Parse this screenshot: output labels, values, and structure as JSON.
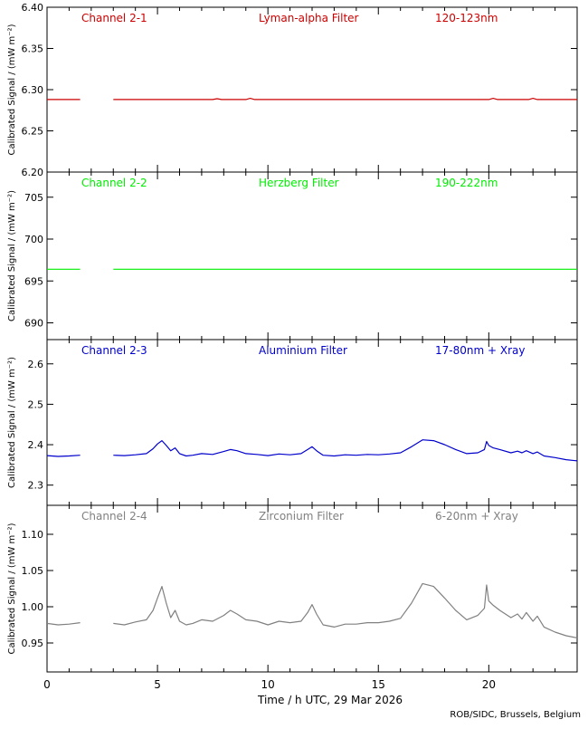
{
  "chart_data": [
    {
      "type": "line",
      "panel_name": "channel-2-1",
      "label_channel": "Channel 2-1",
      "label_filter": "Lyman-alpha Filter",
      "label_band": "120-123nm",
      "color": "#cc0000",
      "ylabel": "Calibrated Signal / (mW m⁻²)",
      "ylim": [
        6.2,
        6.4
      ],
      "yticks": [
        6.2,
        6.25,
        6.3,
        6.35,
        6.4
      ],
      "ytick_labels": [
        "6.20",
        "6.25",
        "6.30",
        "6.35",
        "6.40"
      ],
      "series": [
        {
          "x": [
            0,
            1.5
          ],
          "y": [
            6.288,
            6.288
          ]
        },
        {
          "x": [
            3.0,
            6.0,
            7.5,
            7.7,
            7.9,
            9.0,
            9.2,
            9.4,
            12.0,
            15.0,
            18.0,
            20.0,
            20.2,
            20.4,
            21.8,
            22.0,
            22.2,
            24.0
          ],
          "y": [
            6.288,
            6.288,
            6.288,
            6.289,
            6.288,
            6.288,
            6.2895,
            6.288,
            6.288,
            6.288,
            6.288,
            6.288,
            6.2895,
            6.288,
            6.288,
            6.2895,
            6.288,
            6.288
          ]
        }
      ]
    },
    {
      "type": "line",
      "panel_name": "channel-2-2",
      "label_channel": "Channel 2-2",
      "label_filter": "Herzberg Filter",
      "label_band": "190-222nm",
      "color": "#00ee00",
      "ylabel": "Calibrated Signal / (mW m⁻²)",
      "ylim": [
        688,
        708
      ],
      "yticks": [
        690,
        695,
        700,
        705
      ],
      "ytick_labels": [
        "690",
        "695",
        "700",
        "705"
      ],
      "series": [
        {
          "x": [
            0,
            1.5
          ],
          "y": [
            696.4,
            696.4
          ]
        },
        {
          "x": [
            3.0,
            24.0
          ],
          "y": [
            696.4,
            696.4
          ]
        }
      ]
    },
    {
      "type": "line",
      "panel_name": "channel-2-3",
      "label_channel": "Channel 2-3",
      "label_filter": "Aluminium Filter",
      "label_band": "17-80nm + Xray",
      "color": "#0000cc",
      "ylabel": "Calibrated Signal / (mW m⁻²)",
      "ylim": [
        2.25,
        2.66
      ],
      "yticks": [
        2.3,
        2.4,
        2.5,
        2.6
      ],
      "ytick_labels": [
        "2.3",
        "2.4",
        "2.5",
        "2.6"
      ],
      "series": [
        {
          "x": [
            0,
            0.5,
            1.0,
            1.5
          ],
          "y": [
            2.373,
            2.371,
            2.372,
            2.374
          ]
        },
        {
          "x": [
            3.0,
            3.5,
            4.0,
            4.5,
            4.8,
            5.0,
            5.2,
            5.4,
            5.6,
            5.8,
            6.0,
            6.3,
            6.6,
            7.0,
            7.5,
            8.0,
            8.3,
            8.6,
            9.0,
            9.5,
            10.0,
            10.5,
            11.0,
            11.5,
            11.8,
            12.0,
            12.2,
            12.5,
            13.0,
            13.5,
            14.0,
            14.5,
            15.0,
            15.5,
            16.0,
            16.5,
            17.0,
            17.5,
            18.0,
            18.5,
            19.0,
            19.5,
            19.8,
            19.9,
            20.0,
            20.2,
            20.5,
            21.0,
            21.3,
            21.5,
            21.7,
            22.0,
            22.2,
            22.5,
            23.0,
            23.5,
            24.0
          ],
          "y": [
            2.374,
            2.373,
            2.375,
            2.378,
            2.39,
            2.402,
            2.41,
            2.398,
            2.385,
            2.392,
            2.378,
            2.372,
            2.374,
            2.378,
            2.376,
            2.383,
            2.388,
            2.385,
            2.378,
            2.376,
            2.373,
            2.377,
            2.375,
            2.378,
            2.388,
            2.395,
            2.385,
            2.374,
            2.372,
            2.375,
            2.374,
            2.376,
            2.375,
            2.377,
            2.38,
            2.395,
            2.412,
            2.41,
            2.4,
            2.388,
            2.378,
            2.38,
            2.388,
            2.408,
            2.398,
            2.392,
            2.388,
            2.38,
            2.384,
            2.38,
            2.385,
            2.378,
            2.382,
            2.372,
            2.368,
            2.363,
            2.36
          ]
        }
      ]
    },
    {
      "type": "line",
      "panel_name": "channel-2-4",
      "label_channel": "Channel 2-4",
      "label_filter": "Zirconium Filter",
      "label_band": "6-20nm + Xray",
      "color": "#808080",
      "xlabel": "Time / h UTC, 29 Mar 2026",
      "ylabel": "Calibrated Signal / (mW m⁻²)",
      "ylim": [
        0.91,
        1.14
      ],
      "yticks": [
        0.95,
        1.0,
        1.05,
        1.1
      ],
      "ytick_labels": [
        "0.95",
        "1.00",
        "1.05",
        "1.10"
      ],
      "xlim": [
        0,
        24
      ],
      "xticks": [
        0,
        5,
        10,
        15,
        20
      ],
      "xtick_labels": [
        "0",
        "5",
        "10",
        "15",
        "20"
      ],
      "series": [
        {
          "x": [
            0,
            0.5,
            1.0,
            1.5
          ],
          "y": [
            0.977,
            0.975,
            0.976,
            0.978
          ]
        },
        {
          "x": [
            3.0,
            3.5,
            4.0,
            4.5,
            4.8,
            5.0,
            5.2,
            5.4,
            5.6,
            5.8,
            6.0,
            6.3,
            6.6,
            7.0,
            7.5,
            8.0,
            8.3,
            8.6,
            9.0,
            9.5,
            10.0,
            10.5,
            11.0,
            11.5,
            11.8,
            12.0,
            12.2,
            12.5,
            13.0,
            13.5,
            14.0,
            14.5,
            15.0,
            15.5,
            16.0,
            16.5,
            17.0,
            17.5,
            18.0,
            18.5,
            19.0,
            19.5,
            19.8,
            19.9,
            20.0,
            20.2,
            20.5,
            21.0,
            21.3,
            21.5,
            21.7,
            22.0,
            22.2,
            22.5,
            23.0,
            23.5,
            24.0
          ],
          "y": [
            0.977,
            0.975,
            0.979,
            0.982,
            0.995,
            1.012,
            1.028,
            1.005,
            0.985,
            0.995,
            0.98,
            0.975,
            0.977,
            0.982,
            0.98,
            0.988,
            0.995,
            0.99,
            0.982,
            0.98,
            0.975,
            0.98,
            0.978,
            0.98,
            0.992,
            1.003,
            0.99,
            0.975,
            0.972,
            0.976,
            0.976,
            0.978,
            0.978,
            0.98,
            0.984,
            1.005,
            1.032,
            1.028,
            1.012,
            0.995,
            0.982,
            0.988,
            0.998,
            1.03,
            1.008,
            1.002,
            0.995,
            0.985,
            0.99,
            0.983,
            0.992,
            0.98,
            0.987,
            0.972,
            0.965,
            0.96,
            0.957
          ]
        }
      ]
    }
  ],
  "footer": {
    "credit": "ROB/SIDC, Brussels, Belgium"
  }
}
